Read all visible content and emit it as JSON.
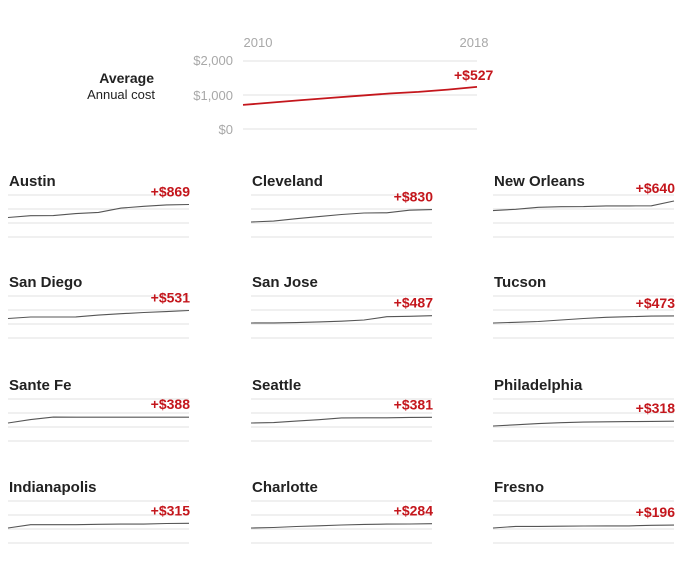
{
  "chart_data": [
    {
      "type": "line",
      "name": "Average",
      "title": "Average",
      "subtitle": "Annual cost",
      "x_labels": [
        "2010",
        "2018"
      ],
      "y_ticks": [
        "$2,000",
        "$1,000",
        "$0"
      ],
      "ylim": [
        0,
        2000
      ],
      "values": [
        710,
        780,
        850,
        915,
        980,
        1045,
        1090,
        1160,
        1237
      ],
      "change": "+$527",
      "color": "#c4161c"
    },
    {
      "type": "line",
      "name": "Austin",
      "title": "Austin",
      "change": "+$869",
      "values": [
        1300,
        1420,
        1430,
        1560,
        1640,
        1930,
        2050,
        2140,
        2169
      ]
    },
    {
      "type": "line",
      "name": "Cleveland",
      "title": "Cleveland",
      "change": "+$830",
      "values": [
        1000,
        1060,
        1220,
        1360,
        1500,
        1600,
        1610,
        1790,
        1830
      ]
    },
    {
      "type": "line",
      "name": "New Orleans",
      "title": "New Orleans",
      "change": "+$640",
      "values": [
        1760,
        1850,
        1980,
        2020,
        2030,
        2070,
        2070,
        2080,
        2400
      ]
    },
    {
      "type": "line",
      "name": "San Diego",
      "title": "San Diego",
      "change": "+$531",
      "values": [
        1300,
        1400,
        1400,
        1410,
        1530,
        1620,
        1700,
        1760,
        1831
      ]
    },
    {
      "type": "line",
      "name": "San Jose",
      "title": "San Jose",
      "change": "+$487",
      "values": [
        1000,
        1010,
        1030,
        1070,
        1120,
        1200,
        1420,
        1450,
        1487
      ]
    },
    {
      "type": "line",
      "name": "Tucson",
      "title": "Tucson",
      "change": "+$473",
      "values": [
        1000,
        1050,
        1100,
        1200,
        1300,
        1380,
        1420,
        1460,
        1473
      ]
    },
    {
      "type": "line",
      "name": "Sante Fe",
      "title": "Sante Fe",
      "change": "+$388",
      "values": [
        1200,
        1430,
        1590,
        1588,
        1588,
        1588,
        1588,
        1588,
        1588
      ]
    },
    {
      "type": "line",
      "name": "Seattle",
      "title": "Seattle",
      "change": "+$381",
      "values": [
        1200,
        1230,
        1330,
        1420,
        1540,
        1550,
        1550,
        1570,
        1581
      ]
    },
    {
      "type": "line",
      "name": "Philadelphia",
      "title": "Philadelphia",
      "change": "+$318",
      "values": [
        1000,
        1080,
        1160,
        1220,
        1260,
        1280,
        1290,
        1310,
        1318
      ]
    },
    {
      "type": "line",
      "name": "Indianapolis",
      "title": "Indianapolis",
      "change": "+$315",
      "values": [
        1000,
        1220,
        1220,
        1220,
        1250,
        1260,
        1260,
        1300,
        1315
      ]
    },
    {
      "type": "line",
      "name": "Charlotte",
      "title": "Charlotte",
      "change": "+$284",
      "values": [
        1000,
        1030,
        1100,
        1150,
        1200,
        1240,
        1260,
        1270,
        1284
      ]
    },
    {
      "type": "line",
      "name": "Fresno",
      "title": "Fresno",
      "change": "+$196",
      "values": [
        1000,
        1110,
        1110,
        1120,
        1130,
        1140,
        1140,
        1180,
        1196
      ]
    }
  ]
}
